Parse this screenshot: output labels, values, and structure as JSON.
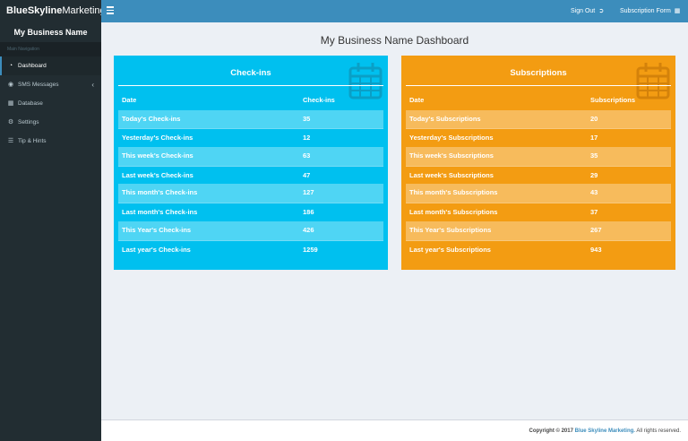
{
  "brand": {
    "bold": "BlueSkyline",
    "normal": "Marketing"
  },
  "topbar": {
    "sign_out": "Sign Out",
    "subscription_form": "Subscription Form"
  },
  "sidebar": {
    "title": "My Business Name",
    "header": "Main Navigation",
    "items": [
      {
        "label": "Dashboard",
        "icon": "dashboard-icon"
      },
      {
        "label": "SMS Messages",
        "icon": "comments-icon"
      },
      {
        "label": "Database",
        "icon": "table-icon"
      },
      {
        "label": "Settings",
        "icon": "gears-icon"
      },
      {
        "label": "Tip & Hints",
        "icon": "book-icon"
      }
    ]
  },
  "page_title": "My Business Name Dashboard",
  "checkins": {
    "title": "Check-ins",
    "headers": [
      "Date",
      "Check-ins"
    ],
    "rows": [
      {
        "label": "Today's Check-ins",
        "value": "35"
      },
      {
        "label": "Yesterday's Check-ins",
        "value": "12"
      },
      {
        "label": "This week's Check-ins",
        "value": "63"
      },
      {
        "label": "Last week's Check-ins",
        "value": "47"
      },
      {
        "label": "This month's Check-ins",
        "value": "127"
      },
      {
        "label": "Last month's Check-ins",
        "value": "186"
      },
      {
        "label": "This Year's Check-ins",
        "value": "426"
      },
      {
        "label": "Last year's Check-ins",
        "value": "1259"
      }
    ]
  },
  "subscriptions": {
    "title": "Subscriptions",
    "headers": [
      "Date",
      "Subscriptions"
    ],
    "rows": [
      {
        "label": "Today's Subscriptions",
        "value": "20"
      },
      {
        "label": "Yesterday's Subscriptions",
        "value": "17"
      },
      {
        "label": "This week's Subscriptions",
        "value": "35"
      },
      {
        "label": "Last week's Subscriptions",
        "value": "29"
      },
      {
        "label": "This month's Subscriptions",
        "value": "43"
      },
      {
        "label": "Last month's Subscriptions",
        "value": "37"
      },
      {
        "label": "This Year's Subscriptions",
        "value": "267"
      },
      {
        "label": "Last year's Subscriptions",
        "value": "943"
      }
    ]
  },
  "footer": {
    "prefix": "Copyright © 2017",
    "link": "Blue Skyline Marketing.",
    "suffix": "All rights reserved."
  },
  "colors": {
    "accent": "#3c8dbc",
    "sidebar": "#222d32",
    "checkins_panel": "#00c0ef",
    "subscriptions_panel": "#f39c12",
    "content_bg": "#ecf0f5"
  }
}
